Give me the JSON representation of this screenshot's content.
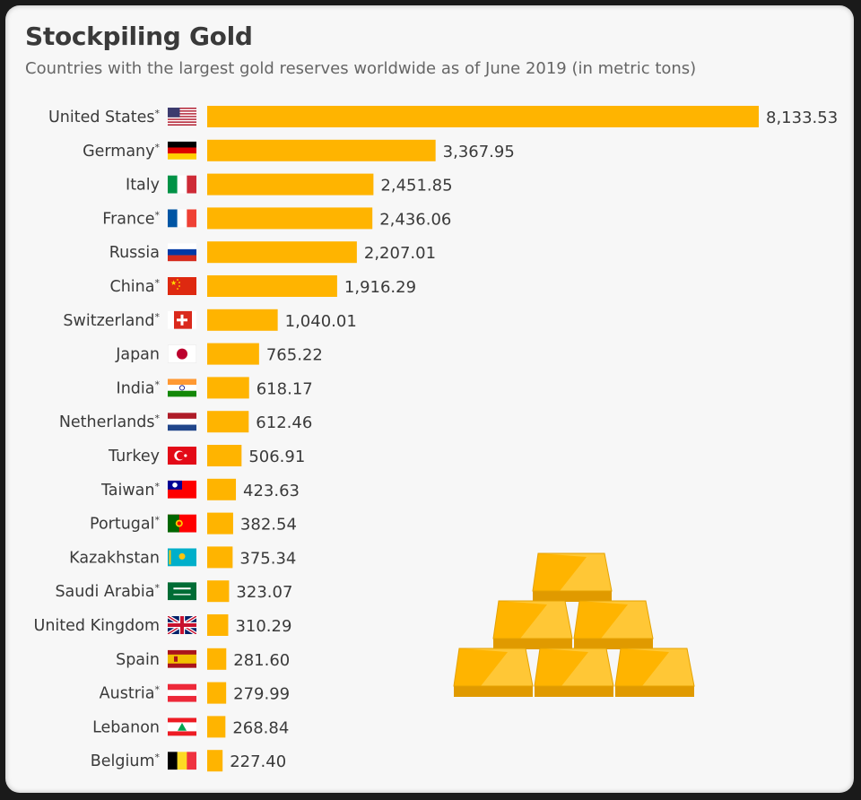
{
  "header": {
    "title": "Stockpiling Gold",
    "subtitle": "Countries with the largest gold reserves worldwide as of June 2019 (in metric tons)"
  },
  "colors": {
    "bar": "#FFB400",
    "text": "#3a3a3a",
    "background": "#f7f7f7"
  },
  "chart_data": {
    "type": "bar",
    "orientation": "horizontal",
    "title": "Stockpiling Gold",
    "subtitle": "Countries with the largest gold reserves worldwide as of June 2019 (in metric tons)",
    "categories": [
      "United States",
      "Germany",
      "Italy",
      "France",
      "Russia",
      "China",
      "Switzerland",
      "Japan",
      "India",
      "Netherlands",
      "Turkey",
      "Taiwan",
      "Portugal",
      "Kazakhstan",
      "Saudi Arabia",
      "United Kingdom",
      "Spain",
      "Austria",
      "Lebanon",
      "Belgium"
    ],
    "values": [
      8133.53,
      3367.95,
      2451.85,
      2436.06,
      2207.01,
      1916.29,
      1040.01,
      765.22,
      618.17,
      612.46,
      506.91,
      423.63,
      382.54,
      375.34,
      323.07,
      310.29,
      281.6,
      279.99,
      268.84,
      227.4
    ],
    "value_labels": [
      "8,133.53",
      "3,367.95",
      "2,451.85",
      "2,436.06",
      "2,207.01",
      "1,916.29",
      "1,040.01",
      "765.22",
      "618.17",
      "612.46",
      "506.91",
      "423.63",
      "382.54",
      "375.34",
      "323.07",
      "310.29",
      "281.60",
      "279.99",
      "268.84",
      "227.40"
    ],
    "asterisk": [
      true,
      true,
      false,
      true,
      false,
      true,
      true,
      false,
      true,
      true,
      false,
      true,
      true,
      false,
      true,
      false,
      false,
      true,
      false,
      true
    ],
    "asterisk_symbol": "*",
    "flags": [
      "us-flag-icon",
      "de-flag-icon",
      "it-flag-icon",
      "fr-flag-icon",
      "ru-flag-icon",
      "cn-flag-icon",
      "ch-flag-icon",
      "jp-flag-icon",
      "in-flag-icon",
      "nl-flag-icon",
      "tr-flag-icon",
      "tw-flag-icon",
      "pt-flag-icon",
      "kz-flag-icon",
      "sa-flag-icon",
      "gb-flag-icon",
      "es-flag-icon",
      "at-flag-icon",
      "lb-flag-icon",
      "be-flag-icon"
    ],
    "xlabel": "",
    "ylabel": "",
    "grid": false,
    "legend": "none",
    "decoration": "gold-bars-icon"
  }
}
